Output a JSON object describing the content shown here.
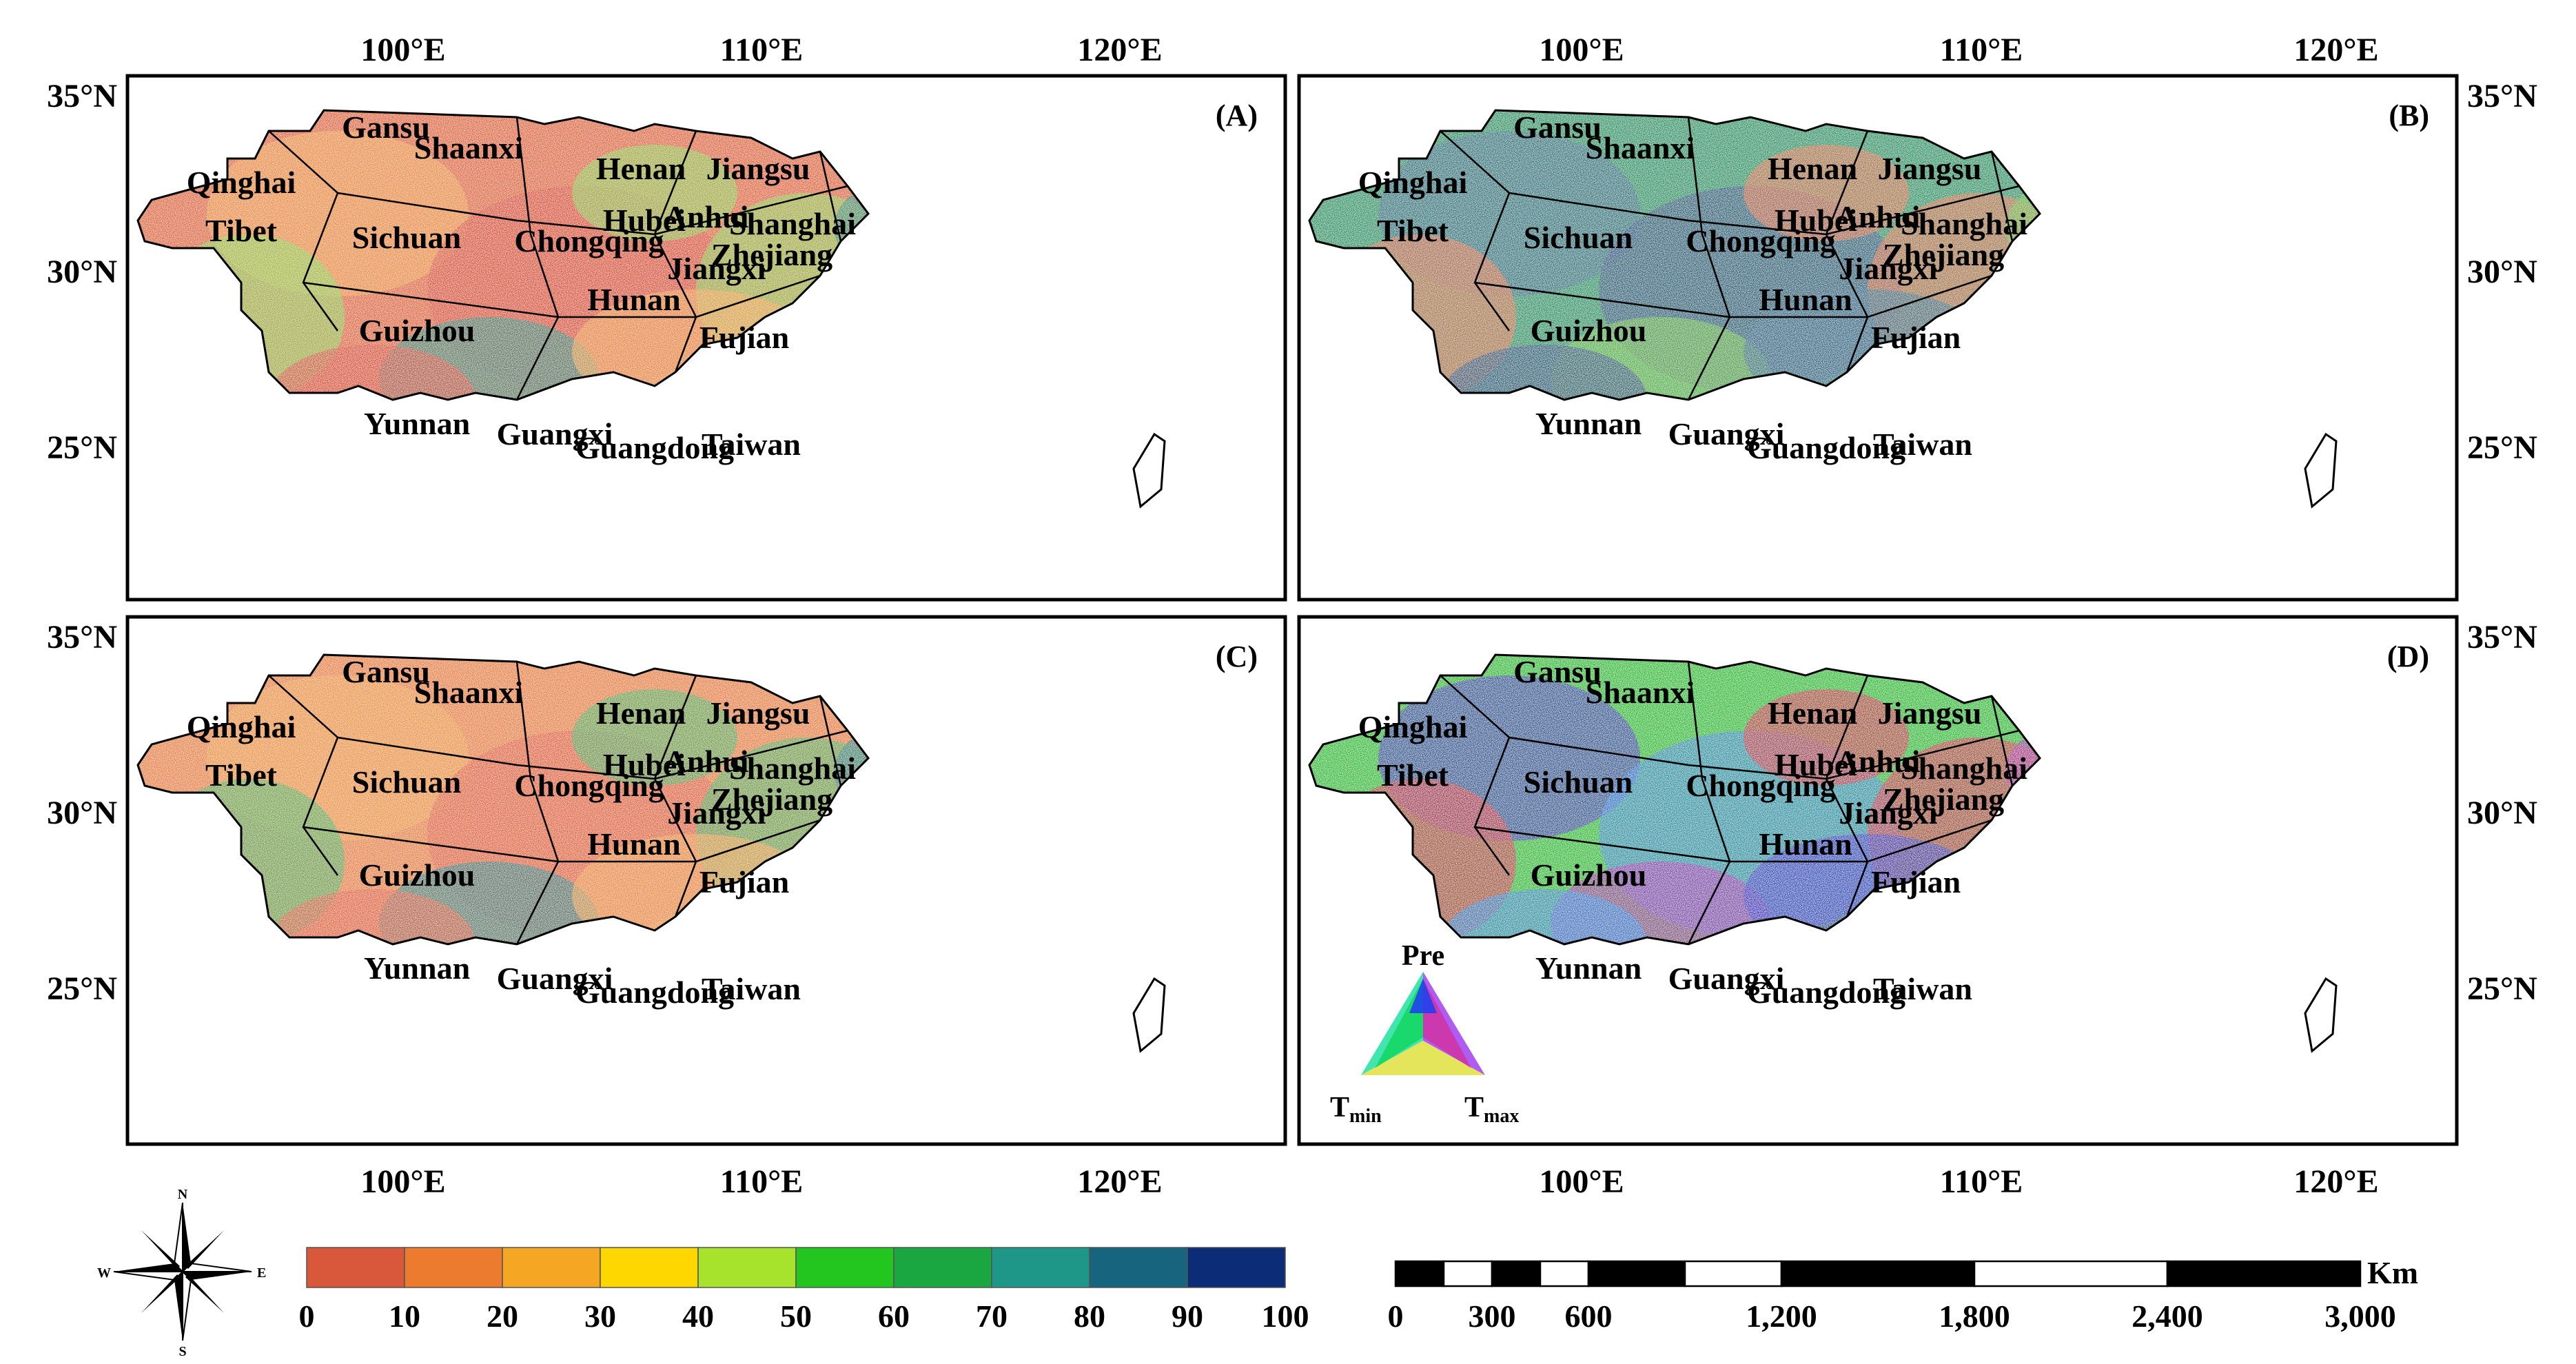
{
  "panels": [
    {
      "id": "A",
      "label": "(A)",
      "colors": {
        "base": "#e06a35",
        "mid": "#f0a23a",
        "patch1": "#8fce3a",
        "patch2": "#2f8a7a",
        "patch3": "#d84a2c"
      }
    },
    {
      "id": "B",
      "label": "(B)",
      "colors": {
        "base": "#1f9a6a",
        "mid": "#2a6f8f",
        "patch1": "#e86e3a",
        "patch2": "#6ec23a",
        "patch3": "#1b4f86"
      }
    },
    {
      "id": "C",
      "label": "(C)",
      "colors": {
        "base": "#e8853b",
        "mid": "#f0a03a",
        "patch1": "#4caf4f",
        "patch2": "#2a7f86",
        "patch3": "#e05b33"
      }
    },
    {
      "id": "D",
      "label": "(D)",
      "colors": {
        "base": "#22c02a",
        "mid": "#2f30c8",
        "patch1": "#e0283c",
        "patch2": "#b02ab0",
        "patch3": "#1d8ae0"
      }
    }
  ],
  "provinces": [
    "Gansu",
    "Shaanxi",
    "Henan",
    "Jiangsu",
    "Qinghai",
    "Anhui",
    "Shanghai",
    "Hubei",
    "Tibet",
    "Sichuan",
    "Chongqing",
    "Zhejiang",
    "Jiangxi",
    "Hunan",
    "Guizhou",
    "Fujian",
    "Yunnan",
    "Guangxi",
    "Guangdong",
    "Taiwan"
  ],
  "axes": {
    "lon_labels": [
      "100°E",
      "110°E",
      "120°E"
    ],
    "lat_labels": [
      "35°N",
      "30°N",
      "25°N"
    ]
  },
  "triangle_legend": {
    "top": "Pre",
    "left_main": "T",
    "left_sub": "min",
    "right_main": "T",
    "right_sub": "max"
  },
  "color_legend": {
    "colors": [
      "#d9573a",
      "#ec7a2f",
      "#f5a623",
      "#ffd700",
      "#a7e22c",
      "#22c61e",
      "#1aa640",
      "#1e9688",
      "#16647e",
      "#0c2c78"
    ],
    "ticks": [
      "0",
      "10",
      "20",
      "30",
      "40",
      "50",
      "60",
      "70",
      "80",
      "90",
      "100"
    ]
  },
  "scale_bar": {
    "ticks": [
      "0",
      "300",
      "600",
      "1,200",
      "1,800",
      "2,400",
      "3,000"
    ],
    "unit": "Km",
    "segments": [
      "black",
      "white",
      "black",
      "white",
      "black",
      "white",
      "black",
      "white"
    ]
  },
  "north_arrow": {
    "n": "N",
    "s": "S",
    "e": "E",
    "w": "W"
  }
}
